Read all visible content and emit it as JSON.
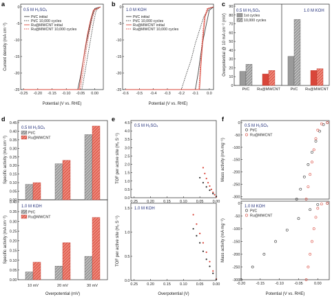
{
  "panels": {
    "a": {
      "label": "a",
      "condition": "0.5 M H₂SO₄",
      "xlabel": "Potential (V vs. RHE)",
      "ylabel": "Current density (mA cm⁻²)",
      "xticks": [
        "-0.25",
        "-0.20",
        "-0.15",
        "-0.10",
        "-0.05",
        "0.00"
      ],
      "yticks": [
        "0",
        "-5",
        "-10",
        "-15",
        "-20",
        "-25"
      ],
      "legend": [
        "Pt/C initial",
        "Pt/C 10,000 cycles",
        "Ru@MWCNT initial",
        "Ru@MWCNT 10,000 cycles"
      ]
    },
    "b": {
      "label": "b",
      "condition": "1.0 M KOH",
      "xlabel": "Potential (V vs. RHE)",
      "xticks": [
        "-0.6",
        "-0.5",
        "-0.4",
        "-0.3",
        "-0.2",
        "-0.1",
        "0.0"
      ],
      "yticks": [
        "0",
        "-5",
        "-10",
        "-15",
        "-20",
        "-25"
      ],
      "legend": [
        "Pt/C initial",
        "Pt/C 10,000 cycles",
        "Ru@MWCNT initial",
        "Ru@MWCNT 10,000 cycles"
      ]
    },
    "c": {
      "label": "c",
      "ylabel": "Overpotential @ 10 mA cm⁻² (mV)",
      "yticks": [
        "0",
        "10",
        "20",
        "30",
        "40",
        "50",
        "60",
        "70",
        "80",
        "90"
      ],
      "conditions": [
        "0.5 M H₂SO₄",
        "1.0 M KOH"
      ],
      "legend": [
        "1st cycles",
        "10,000 cycles"
      ],
      "categories": [
        "Pt/C",
        "Ru@MWCNT",
        "Pt/C",
        "Ru@MWCNT"
      ]
    },
    "d": {
      "label": "d",
      "ylabel": "Specific activity (mA cm⁻²)",
      "xlabel": "Overpotential (mV)",
      "conditions": [
        "0.5 M H₂SO₄",
        "1.0 M KOH"
      ],
      "legend": [
        "Pt/C",
        "Ru@MWCNT"
      ],
      "yticks_top": [
        "0.00",
        "0.05",
        "0.10",
        "0.15",
        "0.20",
        "0.25",
        "0.30",
        "0.35",
        "0.40",
        "0.45"
      ],
      "yticks_bottom": [
        "0.00",
        "0.05",
        "0.10",
        "0.15",
        "0.20",
        "0.25",
        "0.30",
        "0.35",
        "0.40"
      ],
      "xticks": [
        "10 mV",
        "20 mV",
        "30 mV"
      ]
    },
    "e": {
      "label": "e",
      "ylabel": "TOF per active site (H₂ S⁻¹)",
      "xlabel": "Overpotential (V)",
      "conditions": [
        "0.5 M H₂SO₄",
        "1.0 M KOH"
      ],
      "xticks": [
        "0.25",
        "0.20",
        "0.15",
        "0.10",
        "0.05",
        "0.00"
      ],
      "yticks_top": [
        "0.0",
        "0.5",
        "1.0",
        "1.5",
        "2.0",
        "2.5",
        "3.0",
        "3.5",
        "4.0",
        "4.5"
      ],
      "yticks_bottom": [
        "0.0",
        "0.5",
        "1.0",
        "1.5"
      ]
    },
    "f": {
      "label": "f",
      "ylabel": "Mass activity (mA mg⁻¹)",
      "xlabel": "Potential (V vs. RHE)",
      "conditions": [
        "0.5 M H₂SO₄",
        "1.0 M KOH"
      ],
      "legend": [
        "Pt/C",
        "Ru@MWCNT"
      ],
      "xticks": [
        "-0.20",
        "-0.15",
        "-0.10",
        "-0.05",
        "0.00"
      ],
      "yticks": [
        "0",
        "-50",
        "-100",
        "-150",
        "-200",
        "-250",
        "-300"
      ]
    }
  },
  "colors": {
    "ptc": "#6f6f6f",
    "ru": "#d9463a",
    "ptc_dark": "#444444",
    "cond": "#23307a"
  },
  "chart_data": [
    {
      "panel": "c",
      "type": "bar",
      "categories": [
        "Pt/C",
        "Ru@MWCNT",
        "Pt/C",
        "Ru@MWCNT"
      ],
      "series": [
        {
          "name": "1st cycles",
          "values": [
            16,
            13,
            33,
            17
          ]
        },
        {
          "name": "10,000 cycles",
          "values": [
            24,
            17,
            75,
            19
          ]
        }
      ],
      "ylim": [
        0,
        90
      ]
    },
    {
      "panel": "d",
      "type": "bar",
      "condition": "0.5 M H₂SO₄",
      "categories": [
        "10 mV",
        "20 mV",
        "30 mV"
      ],
      "series": [
        {
          "name": "Pt/C",
          "values": [
            0.09,
            0.21,
            0.38
          ]
        },
        {
          "name": "Ru@MWCNT",
          "values": [
            0.1,
            0.23,
            0.43
          ]
        }
      ],
      "ylim": [
        0,
        0.45
      ]
    },
    {
      "panel": "d",
      "type": "bar",
      "condition": "1.0 M KOH",
      "categories": [
        "10 mV",
        "20 mV",
        "30 mV"
      ],
      "series": [
        {
          "name": "Pt/C",
          "values": [
            0.04,
            0.07,
            0.12
          ]
        },
        {
          "name": "Ru@MWCNT",
          "values": [
            0.09,
            0.19,
            0.32
          ]
        }
      ],
      "ylim": [
        0,
        0.4
      ]
    },
    {
      "panel": "a",
      "type": "line",
      "series": [
        {
          "name": "Pt/C initial",
          "x": [
            -0.25,
            -0.06,
            -0.05,
            -0.04,
            -0.03,
            -0.02,
            -0.01,
            0.0,
            0.02
          ],
          "y": [
            -25,
            -25,
            -21,
            -16,
            -11,
            -7,
            -3,
            -0.5,
            0
          ]
        },
        {
          "name": "Pt/C 10,000 cycles",
          "x": [
            -0.25,
            -0.045,
            -0.035,
            -0.025,
            -0.015,
            -0.005,
            0.005,
            0.02
          ],
          "y": [
            -25,
            -25,
            -20,
            -15,
            -10,
            -5,
            -1,
            0
          ]
        },
        {
          "name": "Ru@MWCNT initial",
          "x": [
            -0.25,
            -0.055,
            -0.045,
            -0.035,
            -0.025,
            -0.015,
            -0.005,
            0.02
          ],
          "y": [
            -25,
            -25,
            -19,
            -13,
            -8,
            -4,
            -1,
            0
          ]
        },
        {
          "name": "Ru@MWCNT 10,000 cycles",
          "x": [
            -0.25,
            -0.05,
            -0.04,
            -0.03,
            -0.02,
            -0.01,
            0.0,
            0.02
          ],
          "y": [
            -25,
            -25,
            -19,
            -13,
            -8,
            -4,
            -1,
            0
          ]
        }
      ],
      "xlim": [
        -0.26,
        0.03
      ],
      "ylim": [
        -25,
        0
      ]
    },
    {
      "panel": "b",
      "type": "line",
      "series": [
        {
          "name": "Pt/C initial",
          "x": [
            -0.6,
            -0.1,
            -0.08,
            -0.06,
            -0.04,
            -0.02,
            0.0,
            0.03
          ],
          "y": [
            -25,
            -25,
            -20,
            -14,
            -9,
            -5,
            -1,
            0
          ]
        },
        {
          "name": "Pt/C 10,000 cycles",
          "x": [
            -0.6,
            -0.2,
            -0.17,
            -0.13,
            -0.1,
            -0.07,
            -0.04,
            0.0,
            0.03
          ],
          "y": [
            -25,
            -25,
            -21,
            -16,
            -11,
            -7,
            -3,
            -0.5,
            0
          ]
        },
        {
          "name": "Ru@MWCNT initial",
          "x": [
            -0.6,
            -0.07,
            -0.06,
            -0.05,
            -0.04,
            -0.03,
            -0.01,
            0.03
          ],
          "y": [
            -25,
            -25,
            -18,
            -12,
            -7,
            -3,
            -0.5,
            0
          ]
        },
        {
          "name": "Ru@MWCNT 10,000 cycles",
          "x": [
            -0.6,
            -0.075,
            -0.065,
            -0.055,
            -0.045,
            -0.035,
            -0.015,
            0.03
          ],
          "y": [
            -25,
            -25,
            -18,
            -12,
            -7,
            -3,
            -0.5,
            0
          ]
        }
      ],
      "xlim": [
        -0.62,
        0.03
      ],
      "ylim": [
        -25,
        0
      ]
    },
    {
      "panel": "f",
      "type": "scatter",
      "condition": "0.5 M H₂SO₄",
      "series": [
        {
          "name": "Pt/C",
          "x": [
            -0.055,
            -0.045,
            -0.035,
            -0.025,
            -0.015,
            -0.005,
            0.005,
            0.015,
            0.025
          ],
          "y": [
            -310,
            -270,
            -220,
            -170,
            -120,
            -75,
            -35,
            -8,
            0
          ]
        },
        {
          "name": "Ru@MWCNT",
          "x": [
            -0.03,
            -0.025,
            -0.02,
            -0.015,
            -0.01,
            -0.005,
            0.0,
            0.01,
            0.025
          ],
          "y": [
            -310,
            -260,
            -210,
            -160,
            -110,
            -65,
            -30,
            -5,
            0
          ]
        }
      ],
      "xlim": [
        -0.2,
        0.03
      ],
      "ylim": [
        -310,
        0
      ]
    },
    {
      "panel": "f",
      "type": "scatter",
      "condition": "1.0 M KOH",
      "series": [
        {
          "name": "Pt/C",
          "x": [
            -0.2,
            -0.17,
            -0.14,
            -0.11,
            -0.08,
            -0.05,
            -0.02,
            0.0,
            0.025
          ],
          "y": [
            -300,
            -250,
            -200,
            -150,
            -105,
            -60,
            -25,
            -5,
            0
          ]
        },
        {
          "name": "Ru@MWCNT",
          "x": [
            -0.03,
            -0.025,
            -0.02,
            -0.015,
            -0.01,
            -0.005,
            0.0,
            0.01,
            0.025
          ],
          "y": [
            -300,
            -250,
            -200,
            -150,
            -100,
            -55,
            -20,
            -3,
            0
          ]
        }
      ],
      "xlim": [
        -0.2,
        0.03
      ],
      "ylim": [
        -300,
        0
      ]
    },
    {
      "panel": "e",
      "type": "scatter",
      "condition": "0.5 M H₂SO₄",
      "series": [
        {
          "name": "Ru@MWCNT",
          "x": [
            0.04,
            0.035,
            0.03,
            0.025,
            0.02,
            0.015,
            0.01,
            0.005,
            0.0
          ],
          "y": [
            1.8,
            1.45,
            1.15,
            0.9,
            0.7,
            0.5,
            0.32,
            0.18,
            0.05
          ]
        },
        {
          "name": "Pt/C",
          "x": [
            0.05,
            0.04,
            0.03,
            0.02,
            0.01,
            0.0
          ],
          "y": [
            1.2,
            0.9,
            0.65,
            0.45,
            0.25,
            0.08
          ]
        }
      ],
      "xlim": [
        0.25,
        0.0
      ],
      "ylim": [
        0,
        4.5
      ]
    },
    {
      "panel": "e",
      "type": "scatter",
      "condition": "1.0 M KOH",
      "series": [
        {
          "name": "Ru@MWCNT",
          "x": [
            0.07,
            0.06,
            0.05,
            0.04,
            0.03,
            0.02,
            0.01,
            0.0
          ],
          "y": [
            1.4,
            1.2,
            1.0,
            0.8,
            0.6,
            0.4,
            0.2,
            0.03
          ]
        },
        {
          "name": "Pt/C",
          "x": [
            0.07,
            0.06,
            0.05,
            0.04,
            0.03,
            0.02,
            0.01,
            0.0
          ],
          "y": [
            1.1,
            0.95,
            0.8,
            0.62,
            0.45,
            0.3,
            0.15,
            0.02
          ]
        }
      ],
      "xlim": [
        0.25,
        0.0
      ],
      "ylim": [
        0,
        1.6
      ]
    }
  ]
}
